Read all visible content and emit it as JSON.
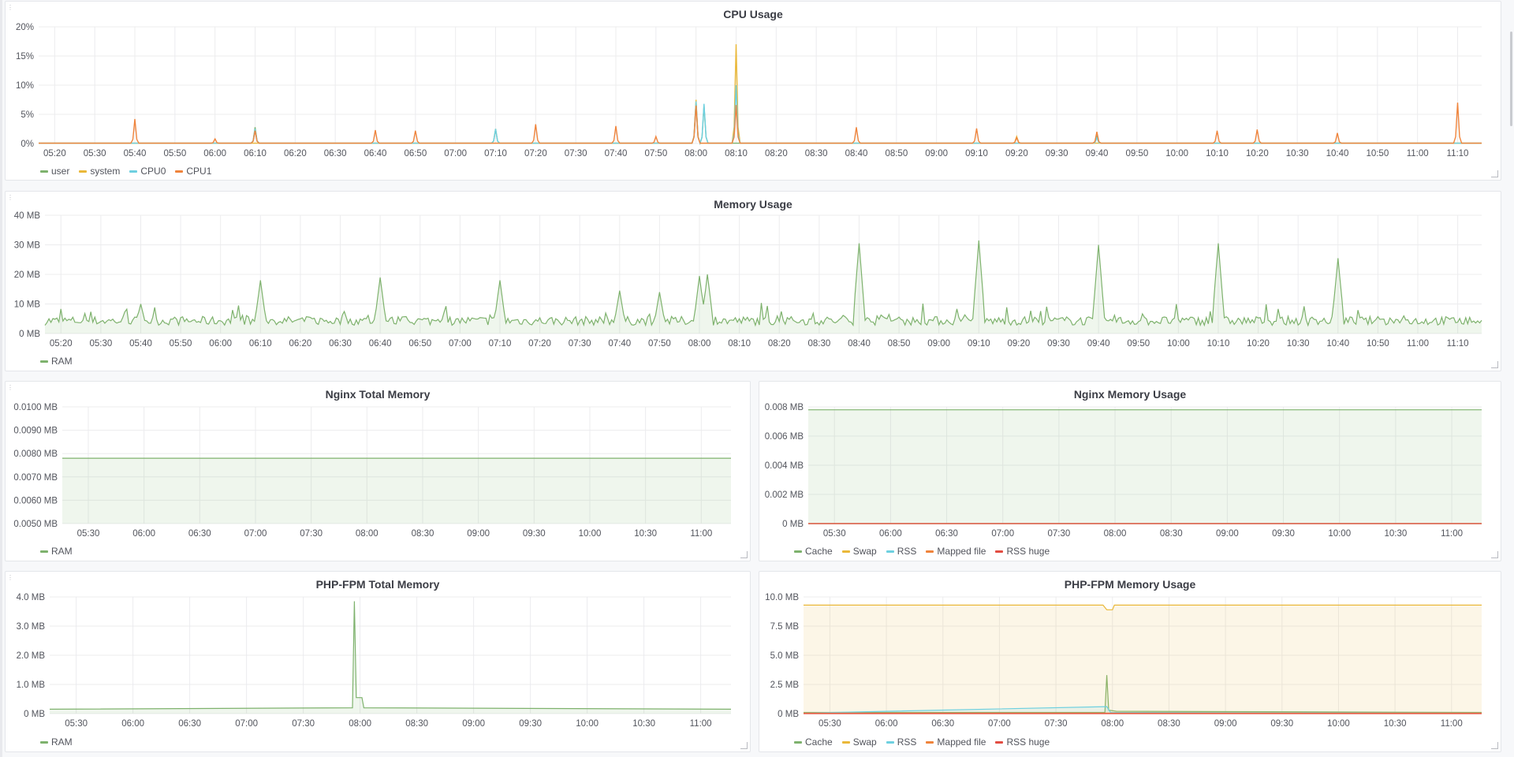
{
  "colors": {
    "green": "#7eb26d",
    "yellow": "#eab839",
    "cyan": "#6ed0e0",
    "orange": "#ef843c",
    "red": "#e24d42",
    "grid": "#ececee"
  },
  "panels": [
    {
      "id": "cpu",
      "title": "CPU Usage",
      "legend": [
        {
          "label": "user",
          "color": "#7eb26d"
        },
        {
          "label": "system",
          "color": "#eab839"
        },
        {
          "label": "CPU0",
          "color": "#6ed0e0"
        },
        {
          "label": "CPU1",
          "color": "#ef843c"
        }
      ]
    },
    {
      "id": "mem",
      "title": "Memory Usage",
      "legend": [
        {
          "label": "RAM",
          "color": "#7eb26d"
        }
      ]
    },
    {
      "id": "nginx-total",
      "title": "Nginx Total Memory",
      "legend": [
        {
          "label": "RAM",
          "color": "#7eb26d"
        }
      ]
    },
    {
      "id": "nginx-usage",
      "title": "Nginx Memory Usage",
      "legend": [
        {
          "label": "Cache",
          "color": "#7eb26d"
        },
        {
          "label": "Swap",
          "color": "#eab839"
        },
        {
          "label": "RSS",
          "color": "#6ed0e0"
        },
        {
          "label": "Mapped file",
          "color": "#ef843c"
        },
        {
          "label": "RSS huge",
          "color": "#e24d42"
        }
      ]
    },
    {
      "id": "php-total",
      "title": "PHP-FPM Total Memory",
      "legend": [
        {
          "label": "RAM",
          "color": "#7eb26d"
        }
      ]
    },
    {
      "id": "php-usage",
      "title": "PHP-FPM Memory Usage",
      "legend": [
        {
          "label": "Cache",
          "color": "#7eb26d"
        },
        {
          "label": "Swap",
          "color": "#eab839"
        },
        {
          "label": "RSS",
          "color": "#6ed0e0"
        },
        {
          "label": "Mapped file",
          "color": "#ef843c"
        },
        {
          "label": "RSS huge",
          "color": "#e24d42"
        }
      ]
    }
  ],
  "chart_data": [
    {
      "type": "line",
      "title": "CPU Usage",
      "yticks": [
        "0%",
        "5%",
        "10%",
        "15%",
        "20%"
      ],
      "ylim": [
        0,
        20
      ],
      "xticks": [
        "05:20",
        "05:30",
        "05:40",
        "05:50",
        "06:00",
        "06:10",
        "06:20",
        "06:30",
        "06:40",
        "06:50",
        "07:00",
        "07:10",
        "07:20",
        "07:30",
        "07:40",
        "07:50",
        "08:00",
        "08:10",
        "08:20",
        "08:30",
        "08:40",
        "08:50",
        "09:00",
        "09:10",
        "09:20",
        "09:30",
        "09:40",
        "09:50",
        "10:00",
        "10:10",
        "10:20",
        "10:30",
        "10:40",
        "10:50",
        "11:00",
        "11:10"
      ],
      "xlim": [
        "05:16",
        "11:16"
      ],
      "series": [
        {
          "name": "user",
          "color": "#7eb26d",
          "spikes": [
            [
              "06:10",
              2.8
            ],
            [
              "07:10",
              2.5
            ],
            [
              "08:00",
              7
            ],
            [
              "08:02",
              6.5
            ],
            [
              "09:40",
              1.2
            ]
          ]
        },
        {
          "name": "system",
          "color": "#eab839",
          "spikes": [
            [
              "08:00",
              7.5
            ],
            [
              "08:10",
              17
            ],
            [
              "09:20",
              1.2
            ]
          ]
        },
        {
          "name": "CPU0",
          "color": "#6ed0e0",
          "spikes": [
            [
              "06:10",
              2.5
            ],
            [
              "07:10",
              2.5
            ],
            [
              "08:00",
              7.2
            ],
            [
              "08:02",
              6.8
            ],
            [
              "08:10",
              10
            ],
            [
              "09:40",
              1.0
            ]
          ]
        },
        {
          "name": "CPU1",
          "color": "#ef843c",
          "spikes": [
            [
              "05:40",
              4.2
            ],
            [
              "06:00",
              0.8
            ],
            [
              "06:10",
              2.2
            ],
            [
              "06:40",
              2.3
            ],
            [
              "06:50",
              2.2
            ],
            [
              "07:20",
              3.3
            ],
            [
              "07:40",
              3.0
            ],
            [
              "07:50",
              1.2
            ],
            [
              "08:00",
              6.5
            ],
            [
              "08:10",
              6.6
            ],
            [
              "08:40",
              2.8
            ],
            [
              "09:10",
              2.6
            ],
            [
              "09:20",
              1.0
            ],
            [
              "09:40",
              2.0
            ],
            [
              "10:10",
              2.2
            ],
            [
              "10:20",
              2.4
            ],
            [
              "10:40",
              1.8
            ],
            [
              "11:10",
              7.0
            ]
          ]
        }
      ]
    },
    {
      "type": "area",
      "title": "Memory Usage",
      "yticks": [
        "0 MB",
        "10 MB",
        "20 MB",
        "30 MB",
        "40 MB"
      ],
      "ylim": [
        0,
        40
      ],
      "xticks": [
        "05:20",
        "05:30",
        "05:40",
        "05:50",
        "06:00",
        "06:10",
        "06:20",
        "06:30",
        "06:40",
        "06:50",
        "07:00",
        "07:10",
        "07:20",
        "07:30",
        "07:40",
        "07:50",
        "08:00",
        "08:10",
        "08:20",
        "08:30",
        "08:40",
        "08:50",
        "09:00",
        "09:10",
        "09:20",
        "09:30",
        "09:40",
        "09:50",
        "10:00",
        "10:10",
        "10:20",
        "10:30",
        "10:40",
        "10:50",
        "11:00",
        "11:10"
      ],
      "xlim": [
        "05:16",
        "11:16"
      ],
      "series": [
        {
          "name": "RAM",
          "color": "#7eb26d",
          "baseline": 4,
          "spikes": [
            [
              "05:40",
              10
            ],
            [
              "06:10",
              18
            ],
            [
              "06:40",
              19
            ],
            [
              "07:10",
              18
            ],
            [
              "07:40",
              14.5
            ],
            [
              "07:50",
              14
            ],
            [
              "08:00",
              19.5
            ],
            [
              "08:02",
              20
            ],
            [
              "08:40",
              30.5
            ],
            [
              "09:10",
              31.5
            ],
            [
              "09:40",
              30
            ],
            [
              "10:10",
              30.5
            ],
            [
              "10:40",
              25.5
            ]
          ]
        }
      ]
    },
    {
      "type": "area",
      "title": "Nginx Total Memory",
      "yticks": [
        "0.0050 MB",
        "0.0060 MB",
        "0.0070 MB",
        "0.0080 MB",
        "0.0090 MB",
        "0.0100 MB"
      ],
      "ylim": [
        0.005,
        0.01
      ],
      "xticks": [
        "05:30",
        "06:00",
        "06:30",
        "07:00",
        "07:30",
        "08:00",
        "08:30",
        "09:00",
        "09:30",
        "10:00",
        "10:30",
        "11:00"
      ],
      "xlim": [
        "05:16",
        "11:16"
      ],
      "series": [
        {
          "name": "RAM",
          "color": "#7eb26d",
          "value": 0.0078
        }
      ]
    },
    {
      "type": "area",
      "title": "Nginx Memory Usage",
      "yticks": [
        "0 MB",
        "0.002 MB",
        "0.004 MB",
        "0.006 MB",
        "0.008 MB"
      ],
      "ylim": [
        0,
        0.008
      ],
      "xticks": [
        "05:30",
        "06:00",
        "06:30",
        "07:00",
        "07:30",
        "08:00",
        "08:30",
        "09:00",
        "09:30",
        "10:00",
        "10:30",
        "11:00"
      ],
      "xlim": [
        "05:16",
        "11:16"
      ],
      "series": [
        {
          "name": "Cache",
          "color": "#7eb26d",
          "value": 0.0078
        },
        {
          "name": "Swap",
          "color": "#eab839",
          "value": 0
        },
        {
          "name": "RSS",
          "color": "#6ed0e0",
          "value": 0
        },
        {
          "name": "Mapped file",
          "color": "#ef843c",
          "value": 0
        },
        {
          "name": "RSS huge",
          "color": "#e24d42",
          "value": 0
        }
      ]
    },
    {
      "type": "area",
      "title": "PHP-FPM Total Memory",
      "yticks": [
        "0 MB",
        "1.0 MB",
        "2.0 MB",
        "3.0 MB",
        "4.0 MB"
      ],
      "ylim": [
        0,
        4
      ],
      "xticks": [
        "05:30",
        "06:00",
        "06:30",
        "07:00",
        "07:30",
        "08:00",
        "08:30",
        "09:00",
        "09:30",
        "10:00",
        "10:30",
        "11:00"
      ],
      "xlim": [
        "05:16",
        "11:16"
      ],
      "series": [
        {
          "name": "RAM",
          "color": "#7eb26d",
          "baseline": 0.15,
          "points": [
            [
              "07:56",
              0.2
            ],
            [
              "07:57",
              3.85
            ],
            [
              "07:58",
              0.55
            ],
            [
              "08:01",
              0.55
            ],
            [
              "08:02",
              0.2
            ]
          ]
        }
      ]
    },
    {
      "type": "area",
      "title": "PHP-FPM Memory Usage",
      "yticks": [
        "0 MB",
        "2.5 MB",
        "5.0 MB",
        "7.5 MB",
        "10.0 MB"
      ],
      "ylim": [
        0,
        10
      ],
      "xticks": [
        "05:30",
        "06:00",
        "06:30",
        "07:00",
        "07:30",
        "08:00",
        "08:30",
        "09:00",
        "09:30",
        "10:00",
        "10:30",
        "11:00"
      ],
      "xlim": [
        "05:16",
        "11:16"
      ],
      "series": [
        {
          "name": "Cache",
          "color": "#7eb26d",
          "baseline": 0.1,
          "points": [
            [
              "07:56",
              0.1
            ],
            [
              "07:57",
              3.3
            ],
            [
              "07:58",
              0.3
            ],
            [
              "08:02",
              0.2
            ]
          ]
        },
        {
          "name": "Swap",
          "color": "#eab839",
          "baseline": 9.3,
          "points": [
            [
              "07:55",
              9.3
            ],
            [
              "07:57",
              8.9
            ],
            [
              "08:00",
              8.9
            ],
            [
              "08:01",
              9.3
            ]
          ]
        },
        {
          "name": "RSS",
          "color": "#6ed0e0",
          "baseline": 0.05,
          "points": [
            [
              "07:57",
              0.6
            ],
            [
              "07:59",
              0.1
            ]
          ]
        },
        {
          "name": "Mapped file",
          "color": "#ef843c",
          "value": 0.05
        },
        {
          "name": "RSS huge",
          "color": "#e24d42",
          "value": 0
        }
      ]
    }
  ]
}
